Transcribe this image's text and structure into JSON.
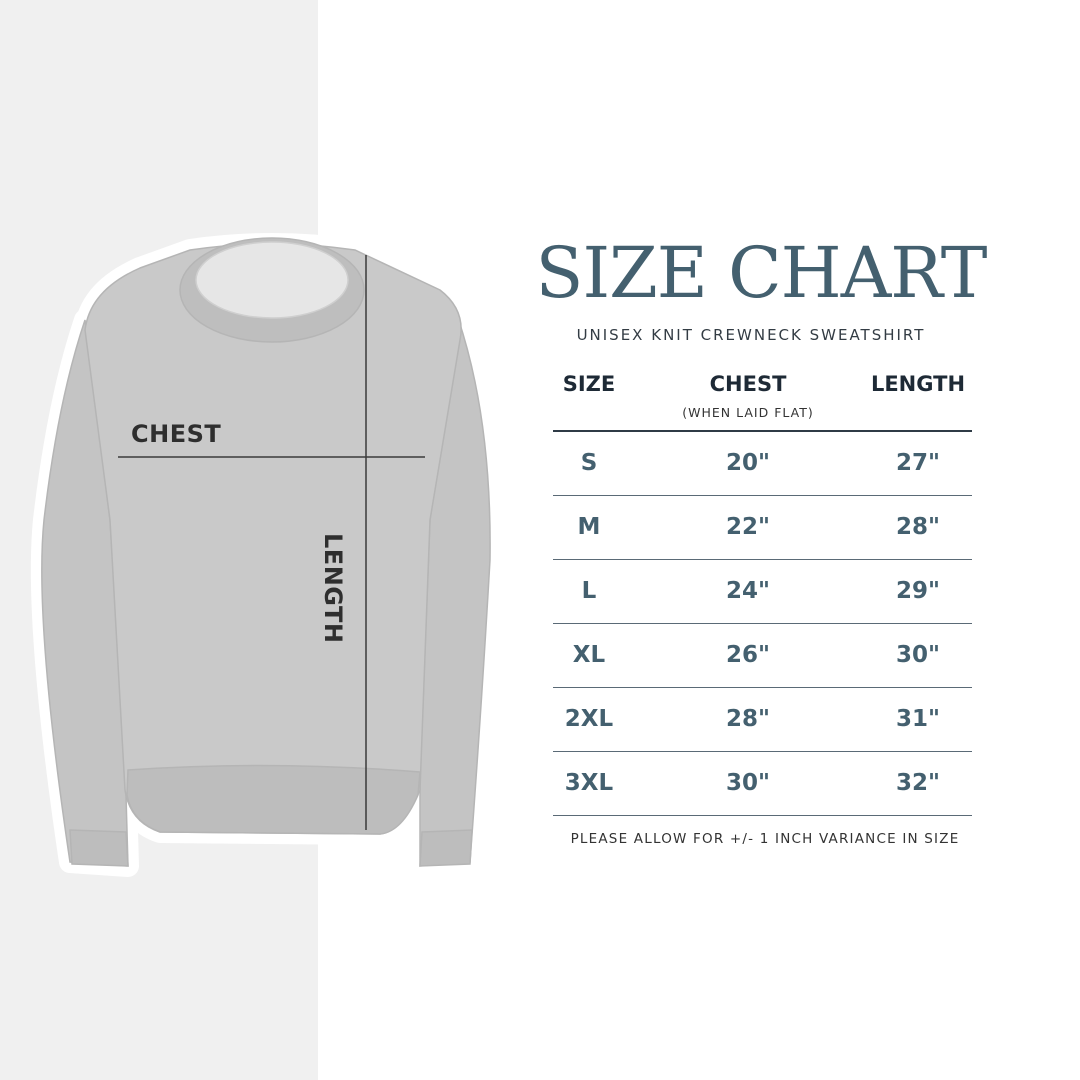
{
  "title": "SIZE CHART",
  "subtitle": "UNISEX KNIT CREWNECK SWEATSHIRT",
  "diagram": {
    "chest_label": "CHEST",
    "length_label": "LENGTH"
  },
  "table": {
    "headers": {
      "size": "SIZE",
      "chest": "CHEST",
      "chest_note": "(WHEN LAID FLAT)",
      "length": "LENGTH"
    },
    "rows": [
      {
        "size": "S",
        "chest": "20\"",
        "length": "27\""
      },
      {
        "size": "M",
        "chest": "22\"",
        "length": "28\""
      },
      {
        "size": "L",
        "chest": "24\"",
        "length": "29\""
      },
      {
        "size": "XL",
        "chest": "26\"",
        "length": "30\""
      },
      {
        "size": "2XL",
        "chest": "28\"",
        "length": "31\""
      },
      {
        "size": "3XL",
        "chest": "30\"",
        "length": "32\""
      }
    ]
  },
  "footer": "PLEASE ALLOW FOR +/- 1 INCH VARIANCE IN SIZE",
  "colors": {
    "title": "#44606f",
    "panel": "#f0f0f0",
    "sweater": "#c9c9c9"
  }
}
